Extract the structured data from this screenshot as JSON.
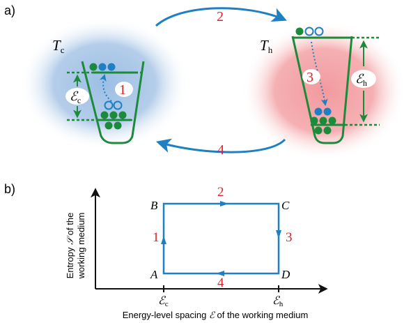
{
  "panel_a": {
    "label": "a)",
    "cold": {
      "symbol": "T",
      "sub": "c",
      "gap_symbol": "ℰ",
      "gap_sub": "c",
      "step": "1"
    },
    "hot": {
      "symbol": "T",
      "sub": "h",
      "gap_symbol": "ℰ",
      "gap_sub": "h",
      "step": "3"
    },
    "top_arrow_step": "2",
    "bottom_arrow_step": "4"
  },
  "panel_b": {
    "label": "b)",
    "corners": {
      "A": "A",
      "B": "B",
      "C": "C",
      "D": "D"
    },
    "steps": {
      "AB": "1",
      "BC": "2",
      "CD": "3",
      "DA": "4"
    },
    "x_ticks": [
      {
        "symbol": "ℰ",
        "sub": "c"
      },
      {
        "symbol": "ℰ",
        "sub": "h"
      }
    ],
    "ylabel_line1": {
      "pre": "Entropy ",
      "sym": "𝒮",
      "post": " of the"
    },
    "ylabel_line2": "working medium",
    "xlabel": {
      "pre": "Energy-level spacing ",
      "sym": "ℰ",
      "post": " of the working medium"
    }
  },
  "colors": {
    "blue": "#1f7fc3",
    "green": "#1c8a3a",
    "red_text": "#e0202a",
    "cold_fill": "#a9c6e6",
    "hot_fill": "#f2a3a6"
  }
}
